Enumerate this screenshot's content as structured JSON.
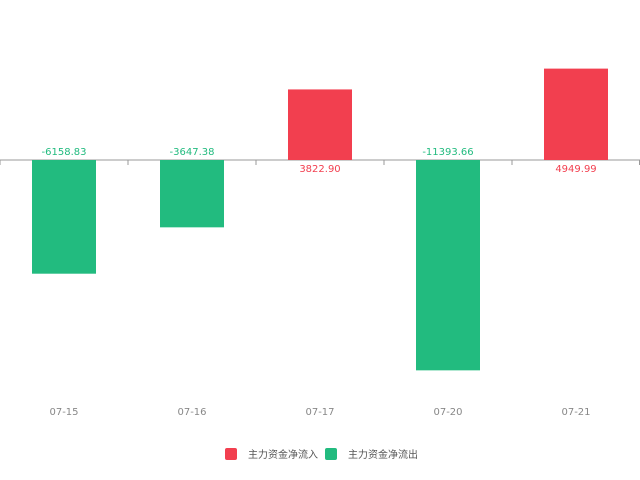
{
  "chart_data": {
    "type": "bar",
    "categories": [
      "07-15",
      "07-16",
      "07-17",
      "07-20",
      "07-21"
    ],
    "series": [
      {
        "name": "主力资金净流入",
        "color": "#f23f4f",
        "values": [
          null,
          null,
          3822.9,
          null,
          4949.99
        ],
        "value_labels": [
          null,
          null,
          "3822.90",
          null,
          "4949.99"
        ]
      },
      {
        "name": "主力资金净流出",
        "color": "#22bb7f",
        "values": [
          -6158.83,
          -3647.38,
          null,
          -11393.66,
          null
        ]
      }
    ],
    "ylim": [
      -13000,
      6500
    ]
  }
}
